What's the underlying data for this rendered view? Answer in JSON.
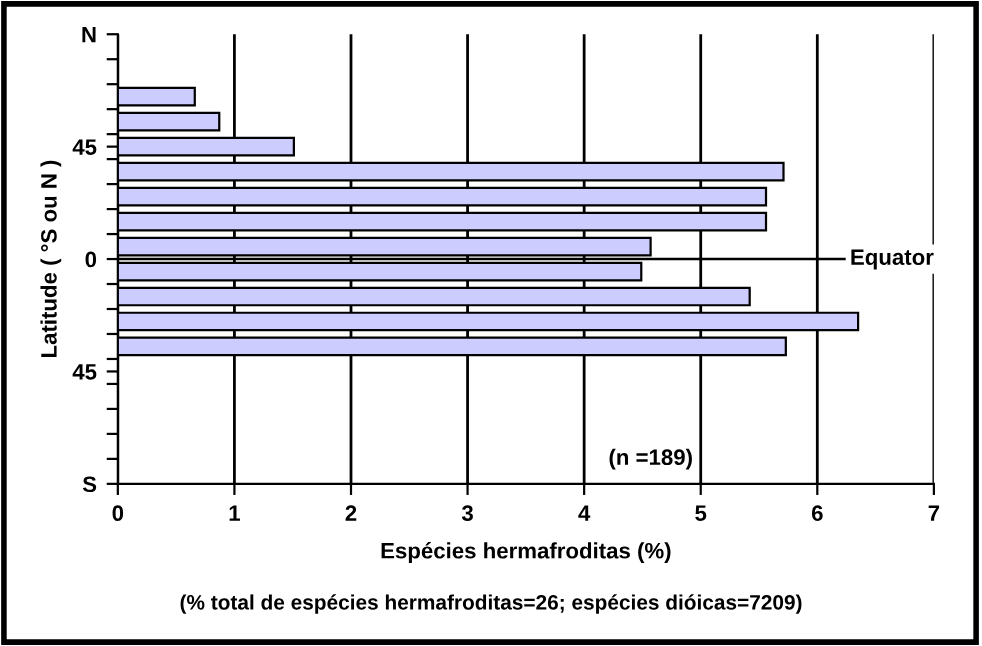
{
  "chart_data": {
    "type": "bar",
    "orientation": "horizontal",
    "xlabel": "Espécies hermafroditas (%)",
    "ylabel": "Latitude ( °S ou N )",
    "x": [
      65,
      55,
      45,
      35,
      25,
      15,
      5,
      -5,
      -15,
      -25,
      -35
    ],
    "values": [
      0.66,
      0.87,
      1.51,
      5.71,
      5.56,
      5.56,
      4.57,
      4.49,
      5.42,
      6.35,
      5.73
    ],
    "color": "#ccccff",
    "xlim": [
      0,
      7
    ],
    "xticks": [
      0,
      1,
      2,
      3,
      4,
      5,
      6,
      7
    ],
    "ylim": [
      -90,
      90
    ],
    "yticks": [
      {
        "value": 90,
        "label": "N"
      },
      {
        "value": 80,
        "label": null
      },
      {
        "value": 70,
        "label": null
      },
      {
        "value": 60,
        "label": null
      },
      {
        "value": 50,
        "label": null
      },
      {
        "value": 45,
        "label": "45"
      },
      {
        "value": 40,
        "label": null
      },
      {
        "value": 30,
        "label": null
      },
      {
        "value": 20,
        "label": null
      },
      {
        "value": 10,
        "label": null
      },
      {
        "value": 0,
        "label": "0"
      },
      {
        "value": -10,
        "label": null
      },
      {
        "value": -20,
        "label": null
      },
      {
        "value": -30,
        "label": null
      },
      {
        "value": -40,
        "label": null
      },
      {
        "value": -45,
        "label": "45"
      },
      {
        "value": -50,
        "label": null
      },
      {
        "value": -60,
        "label": null
      },
      {
        "value": -70,
        "label": null
      },
      {
        "value": -80,
        "label": null
      },
      {
        "value": -90,
        "label": "S"
      }
    ],
    "grid": "x",
    "legend": false,
    "ref_lines": [
      {
        "axis": "y",
        "value": 0,
        "label": "Equator",
        "color": "#000000"
      }
    ],
    "annotations": [
      "(n =189)",
      "(% total de espécies hermafroditas=26; espécies dióicas=7209)"
    ]
  }
}
